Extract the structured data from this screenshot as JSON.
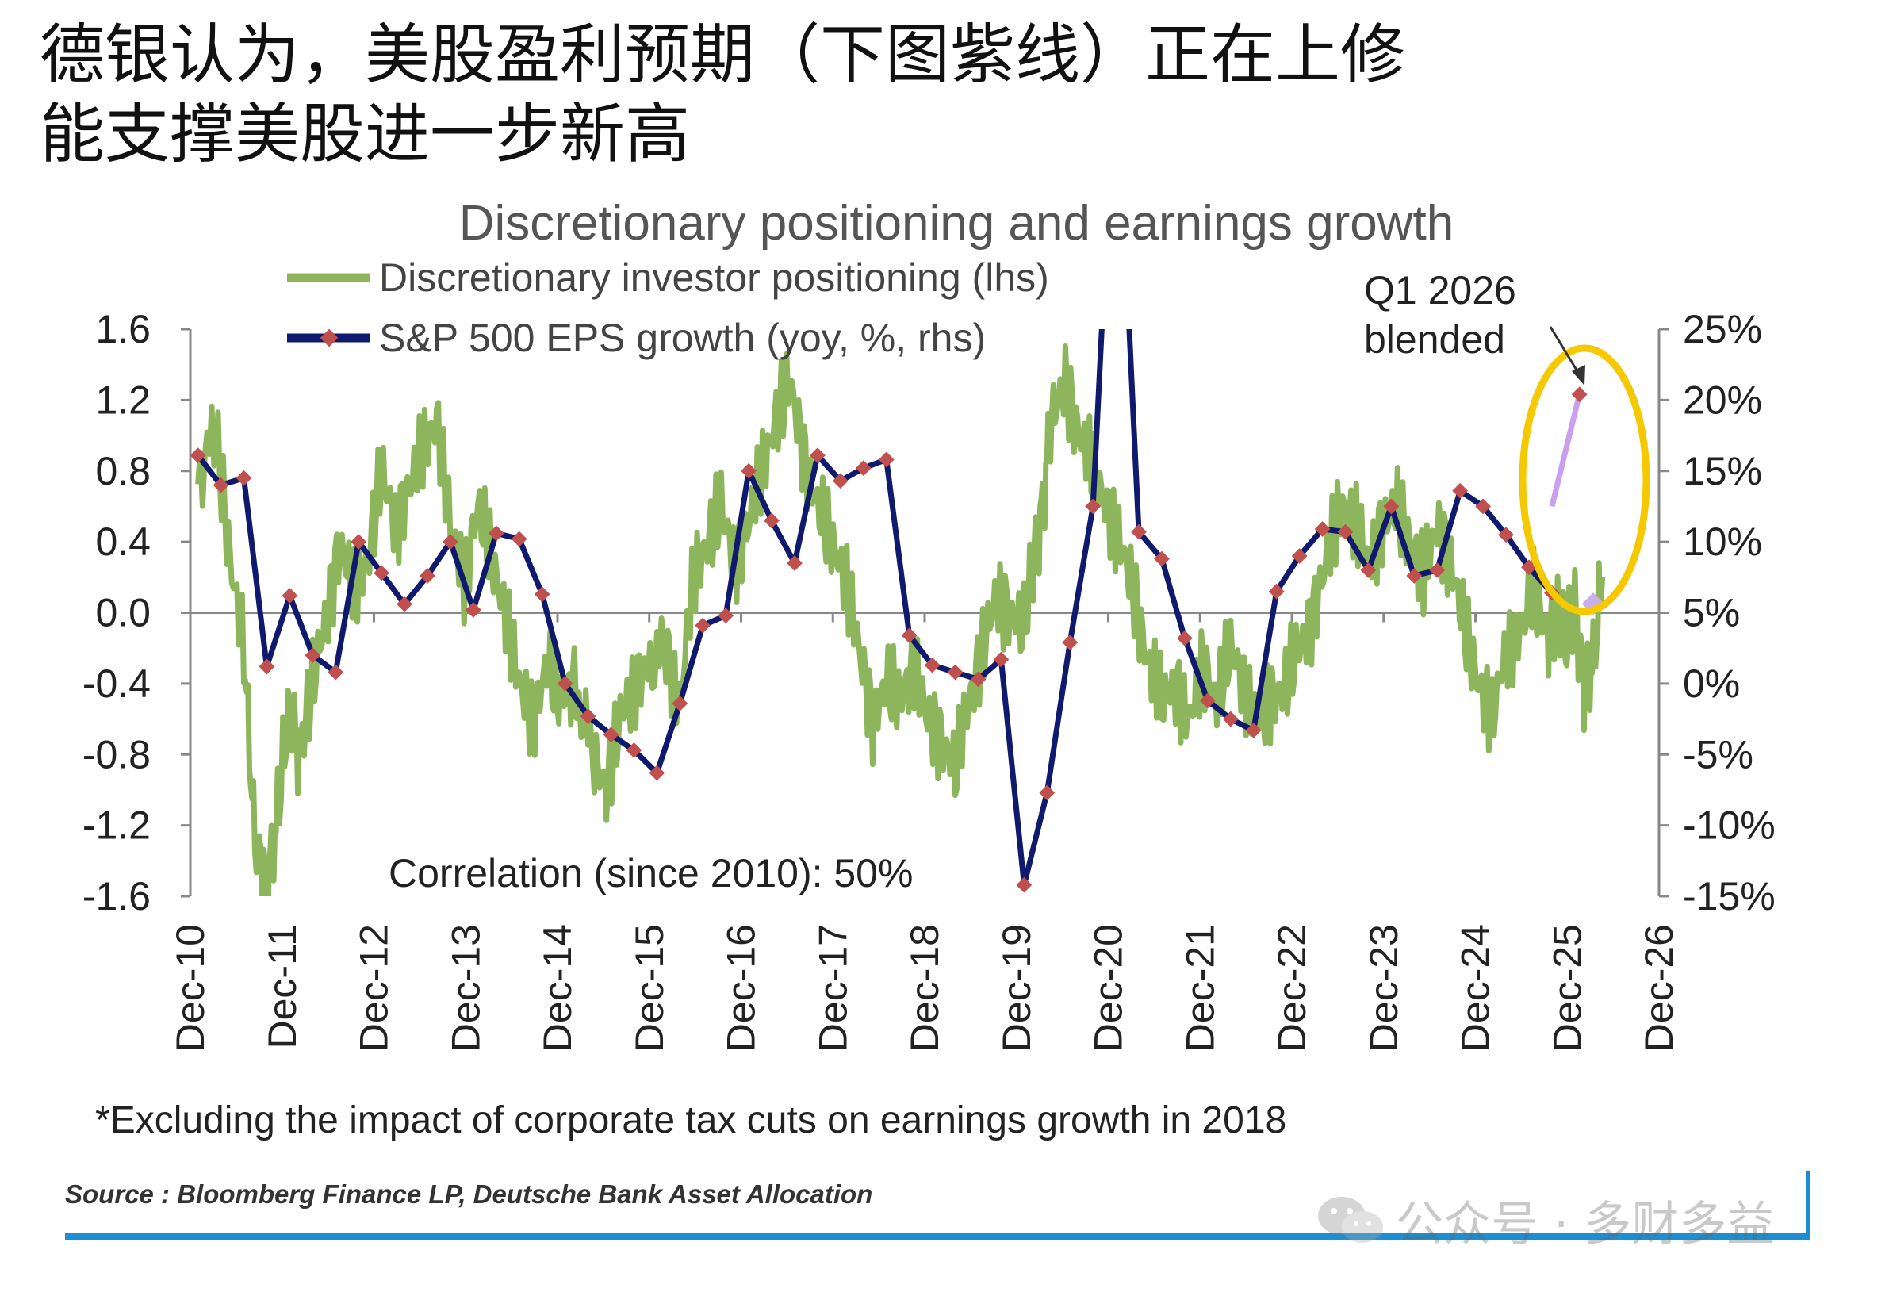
{
  "headline": {
    "line1": "德银认为，美股盈利预期（下图紫线）正在上修",
    "line2": "能支撑美股进一步新高"
  },
  "chart_data": {
    "type": "line",
    "title": "Discretionary positioning and earnings growth",
    "legend": [
      {
        "name": "Discretionary investor positioning (lhs)",
        "color": "#8db65c"
      },
      {
        "name": "S&P 500 EPS growth (yoy, %, rhs)",
        "color": "#0f1a6e"
      }
    ],
    "legend_placement": "top-left",
    "y_left": {
      "ticks": [
        "1.6",
        "1.2",
        "0.8",
        "0.4",
        "0.0",
        "-0.4",
        "-0.8",
        "-1.2",
        "-1.6"
      ],
      "range": [
        -1.6,
        1.6
      ]
    },
    "y_right": {
      "ticks": [
        "25%",
        "20%",
        "15%",
        "10%",
        "5%",
        "0%",
        "-5%",
        "-10%",
        "-15%"
      ],
      "range": [
        -15,
        25
      ]
    },
    "x_ticks": [
      "Dec-10",
      "Dec-11",
      "Dec-12",
      "Dec-13",
      "Dec-14",
      "Dec-15",
      "Dec-16",
      "Dec-17",
      "Dec-18",
      "Dec-19",
      "Dec-20",
      "Dec-21",
      "Dec-22",
      "Dec-23",
      "Dec-24",
      "Dec-25",
      "Dec-26"
    ],
    "x_range": [
      2010.917,
      2026.917
    ],
    "grid": false,
    "series": [
      {
        "name": "Discretionary investor positioning (lhs)",
        "axis": "left",
        "color": "#8db65c",
        "x": [
          2011.0,
          2011.2,
          2011.35,
          2011.5,
          2011.62,
          2011.75,
          2011.85,
          2012.0,
          2012.1,
          2012.25,
          2012.4,
          2012.55,
          2012.7,
          2012.85,
          2013.0,
          2013.15,
          2013.3,
          2013.45,
          2013.6,
          2013.75,
          2013.9,
          2014.05,
          2014.2,
          2014.35,
          2014.5,
          2014.65,
          2014.8,
          2014.95,
          2015.1,
          2015.3,
          2015.45,
          2015.6,
          2015.75,
          2015.9,
          2016.1,
          2016.25,
          2016.4,
          2016.55,
          2016.7,
          2016.85,
          2017.0,
          2017.15,
          2017.3,
          2017.45,
          2017.6,
          2017.75,
          2017.9,
          2018.05,
          2018.2,
          2018.35,
          2018.5,
          2018.65,
          2018.8,
          2018.95,
          2019.1,
          2019.25,
          2019.4,
          2019.55,
          2019.7,
          2019.85,
          2020.0,
          2020.1,
          2020.2,
          2020.3,
          2020.45,
          2020.6,
          2020.75,
          2020.9,
          2021.05,
          2021.2,
          2021.35,
          2021.5,
          2021.65,
          2021.8,
          2021.95,
          2022.1,
          2022.25,
          2022.4,
          2022.55,
          2022.7,
          2022.85,
          2023.0,
          2023.15,
          2023.3,
          2023.45,
          2023.6,
          2023.75,
          2023.9,
          2024.05,
          2024.2,
          2024.35,
          2024.5,
          2024.65,
          2024.8,
          2024.95,
          2025.1,
          2025.25,
          2025.4,
          2025.55,
          2025.7,
          2025.8,
          2025.9,
          2026.0,
          2026.1,
          2026.2,
          2026.3
        ],
        "values": [
          0.8,
          1.0,
          0.3,
          -0.2,
          -1.3,
          -1.5,
          -1.2,
          -0.5,
          -0.8,
          -0.4,
          0.0,
          0.4,
          0.1,
          0.3,
          0.8,
          0.5,
          0.7,
          0.9,
          1.1,
          0.5,
          0.2,
          0.6,
          0.3,
          0.0,
          -0.4,
          -0.6,
          -0.3,
          -0.5,
          -0.4,
          -0.8,
          -1.0,
          -0.6,
          -0.4,
          -0.3,
          -0.2,
          -0.5,
          0.2,
          0.4,
          0.6,
          0.3,
          0.5,
          0.8,
          1.1,
          1.3,
          0.9,
          0.6,
          0.4,
          0.2,
          -0.2,
          -0.6,
          -0.4,
          -0.5,
          -0.3,
          -0.6,
          -0.7,
          -0.9,
          -0.5,
          -0.2,
          0.1,
          0.0,
          -0.1,
          0.3,
          0.6,
          1.1,
          1.3,
          1.0,
          0.8,
          0.6,
          0.4,
          0.1,
          -0.3,
          -0.5,
          -0.4,
          -0.6,
          -0.3,
          -0.5,
          -0.2,
          -0.4,
          -0.6,
          -0.5,
          -0.4,
          -0.2,
          0.0,
          0.3,
          0.6,
          0.5,
          0.3,
          0.5,
          0.6,
          0.4,
          0.2,
          0.5,
          0.3,
          -0.1,
          -0.4,
          -0.6,
          -0.2,
          -0.1,
          0.1,
          -0.1,
          0.0,
          -0.2,
          0.05,
          -0.4,
          -0.3,
          0.2
        ]
      },
      {
        "name": "S&P 500 EPS growth (yoy, %, rhs)",
        "axis": "right",
        "color": "#0f1a6e",
        "x": [
          2011.0,
          2011.25,
          2011.5,
          2011.75,
          2012.0,
          2012.25,
          2012.5,
          2012.75,
          2013.0,
          2013.25,
          2013.5,
          2013.75,
          2014.0,
          2014.25,
          2014.5,
          2014.75,
          2015.0,
          2015.25,
          2015.5,
          2015.75,
          2016.0,
          2016.25,
          2016.5,
          2016.75,
          2017.0,
          2017.25,
          2017.5,
          2017.75,
          2018.0,
          2018.25,
          2018.5,
          2018.75,
          2019.0,
          2019.25,
          2019.5,
          2019.75,
          2020.0,
          2020.25,
          2020.5,
          2020.75,
          2021.0,
          2021.25,
          2021.5,
          2021.75,
          2022.0,
          2022.25,
          2022.5,
          2022.75,
          2023.0,
          2023.25,
          2023.5,
          2023.75,
          2024.0,
          2024.25,
          2024.5,
          2024.75,
          2025.0,
          2025.25,
          2025.5,
          2025.75
        ],
        "values": [
          16.1,
          14.0,
          14.5,
          1.2,
          6.2,
          2.0,
          0.8,
          10.0,
          7.8,
          5.6,
          7.6,
          10.0,
          5.2,
          10.6,
          10.2,
          6.3,
          0.0,
          -2.3,
          -3.6,
          -4.7,
          -6.3,
          -1.4,
          4.1,
          4.8,
          15.0,
          11.5,
          8.5,
          16.1,
          14.3,
          15.2,
          15.8,
          3.4,
          1.3,
          0.8,
          0.3,
          1.7,
          -14.2,
          -7.7,
          2.9,
          12.5,
          45.0,
          10.7,
          8.8,
          3.2,
          -1.2,
          -2.5,
          -3.3,
          6.5,
          9.0,
          10.9,
          10.7,
          8.0,
          12.5,
          7.6,
          8.0,
          13.6,
          12.5,
          10.5,
          8.2,
          6.4
        ],
        "note": "values mapped to real quarterly EPS growth from the rhs axis"
      },
      {
        "name": "Q1 2026 blended",
        "axis": "right",
        "color": "#c9a0f0",
        "x": [
          2025.75,
          2026.05
        ],
        "values": [
          12.5,
          20.4
        ]
      }
    ],
    "annotations": {
      "q1_label": "Q1 2026\nblended",
      "correlation": "Correlation (since 2010): 50%",
      "highlight_color": "#f5c800"
    }
  },
  "footnote": "*Excluding the impact of corporate tax cuts on earnings growth in 2018",
  "source": "Source : Bloomberg Finance LP, Deutsche Bank Asset Allocation",
  "watermark": "公众号 · 多财多益"
}
